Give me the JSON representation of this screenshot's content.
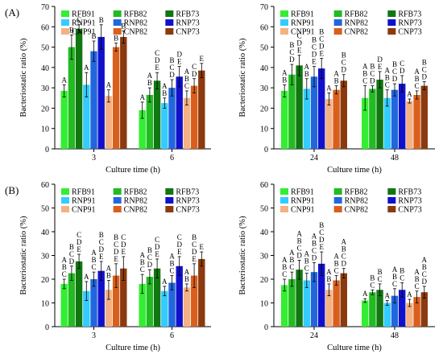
{
  "panel_labels": [
    "(A)",
    "(B)"
  ],
  "legend_labels": [
    "RFB91",
    "RFB82",
    "RFB73",
    "RNP91",
    "RNP82",
    "RNP73",
    "CNP91",
    "CNP82",
    "CNP73"
  ],
  "series_colors": [
    "#33ee33",
    "#22bb22",
    "#117711",
    "#33ccff",
    "#2266dd",
    "#1111cc",
    "#f4b183",
    "#d95f1c",
    "#8b3a0f"
  ],
  "chart_data": [
    {
      "type": "bar",
      "panel": "(A)",
      "position": "top-left",
      "categories": [
        "3",
        "6"
      ],
      "xlabel": "Culture time (h)",
      "ylabel": "Bacteriostatic ratio (%)",
      "ylim": [
        0,
        70
      ],
      "yticks": [
        "0",
        "10",
        "20",
        "30",
        "40",
        "50",
        "60",
        "70"
      ],
      "grid": false,
      "legend": "top",
      "series": [
        {
          "name": "RFB91",
          "values": [
            28.5,
            19
          ],
          "errors": [
            3,
            4
          ],
          "letters": [
            "A",
            "A"
          ]
        },
        {
          "name": "RFB82",
          "values": [
            50,
            26.5
          ],
          "errors": [
            6,
            3.5
          ],
          "letters": [
            "B",
            "A B"
          ]
        },
        {
          "name": "RFB73",
          "values": [
            59,
            33.5
          ],
          "errors": [
            2,
            4
          ],
          "letters": [
            "C",
            "C D E"
          ]
        },
        {
          "name": "RNP91",
          "values": [
            31.5,
            22.5
          ],
          "errors": [
            6,
            2.5
          ],
          "letters": [
            "A",
            "A B"
          ]
        },
        {
          "name": "RNP82",
          "values": [
            48,
            30
          ],
          "errors": [
            5,
            4
          ],
          "letters": [
            "B",
            "B C D"
          ]
        },
        {
          "name": "RNP73",
          "values": [
            55,
            35.5
          ],
          "errors": [
            6,
            5
          ],
          "letters": [
            "B",
            "D E"
          ]
        },
        {
          "name": "CNP91",
          "values": [
            26,
            25
          ],
          "errors": [
            3,
            3.5
          ],
          "letters": [
            "A",
            "A B C"
          ]
        },
        {
          "name": "CNP82",
          "values": [
            50,
            31
          ],
          "errors": [
            2,
            3.5
          ],
          "letters": [
            "B",
            "C D"
          ]
        },
        {
          "name": "CNP73",
          "values": [
            55,
            38.5
          ],
          "errors": [
            3,
            3.5
          ],
          "letters": [
            "B",
            "E"
          ]
        }
      ]
    },
    {
      "type": "bar",
      "panel": "(A)",
      "position": "top-right",
      "categories": [
        "24",
        "48"
      ],
      "xlabel": "Culture time (h)",
      "ylabel": "Bacteriostatic ratio (%)",
      "ylim": [
        0,
        70
      ],
      "yticks": [
        "0",
        "10",
        "20",
        "30",
        "40",
        "50",
        "60",
        "70"
      ],
      "grid": false,
      "legend": "top",
      "series": [
        {
          "name": "RFB91",
          "values": [
            28.5,
            25
          ],
          "errors": [
            3,
            6
          ],
          "letters": [
            "A B",
            "A B C"
          ]
        },
        {
          "name": "RFB82",
          "values": [
            36.5,
            29.5
          ],
          "errors": [
            5,
            1.5
          ],
          "letters": [
            "B C D",
            "B C D"
          ]
        },
        {
          "name": "RFB73",
          "values": [
            41,
            34
          ],
          "errors": [
            5,
            4
          ],
          "letters": [
            "C D E",
            "D E"
          ]
        },
        {
          "name": "RNP91",
          "values": [
            29.5,
            25
          ],
          "errors": [
            5,
            4
          ],
          "letters": [
            "A B",
            "A B C"
          ]
        },
        {
          "name": "RNP82",
          "values": [
            35.5,
            29
          ],
          "errors": [
            5,
            3
          ],
          "letters": [
            "B C D E",
            "B C D"
          ]
        },
        {
          "name": "RNP73",
          "values": [
            39.5,
            32
          ],
          "errors": [
            5,
            4
          ],
          "letters": [
            "B C D E",
            "C D"
          ]
        },
        {
          "name": "CNP91",
          "values": [
            24.5,
            23.5
          ],
          "errors": [
            3,
            1
          ],
          "letters": [
            "A",
            "A"
          ]
        },
        {
          "name": "CNP82",
          "values": [
            29,
            26.5
          ],
          "errors": [
            2,
            2
          ],
          "letters": [
            "A B",
            "A B C"
          ]
        },
        {
          "name": "CNP73",
          "values": [
            33.5,
            31
          ],
          "errors": [
            3,
            2
          ],
          "letters": [
            "B C D",
            "B C D"
          ]
        }
      ]
    },
    {
      "type": "bar",
      "panel": "(B)",
      "position": "bottom-left",
      "categories": [
        "3",
        "6"
      ],
      "xlabel": "Culture time (h)",
      "ylabel": "Bacteriostatic ratio (%)",
      "ylim": [
        0,
        60
      ],
      "yticks": [
        "0",
        "10",
        "20",
        "30",
        "40",
        "50",
        "60"
      ],
      "grid": false,
      "legend": "top",
      "series": [
        {
          "name": "RFB91",
          "values": [
            18,
            18
          ],
          "errors": [
            2,
            4
          ],
          "letters": [
            "A B C",
            "A B C"
          ]
        },
        {
          "name": "RFB82",
          "values": [
            22.5,
            21
          ],
          "errors": [
            3,
            3
          ],
          "letters": [
            "B C D",
            "B C D"
          ]
        },
        {
          "name": "RFB73",
          "values": [
            27.5,
            24.5
          ],
          "errors": [
            3,
            4
          ],
          "letters": [
            "C D E",
            "C D E"
          ]
        },
        {
          "name": "RNP91",
          "values": [
            15,
            15
          ],
          "errors": [
            4,
            2
          ],
          "letters": [
            "A",
            "A"
          ]
        },
        {
          "name": "RNP82",
          "values": [
            20,
            18.5
          ],
          "errors": [
            3,
            3
          ],
          "letters": [
            "A B C",
            "A B C"
          ]
        },
        {
          "name": "RNP73",
          "values": [
            23.5,
            25.5
          ],
          "errors": [
            4,
            4
          ],
          "letters": [
            "B C D E",
            "C D E"
          ]
        },
        {
          "name": "CNP91",
          "values": [
            15.5,
            16.5
          ],
          "errors": [
            4,
            1.5
          ],
          "letters": [
            "A B",
            "A B"
          ]
        },
        {
          "name": "CNP82",
          "values": [
            21.5,
            21.5
          ],
          "errors": [
            5,
            5
          ],
          "letters": [
            "B C D E",
            "B C D E"
          ]
        },
        {
          "name": "CNP73",
          "values": [
            24.5,
            28.5
          ],
          "errors": [
            5,
            3
          ],
          "letters": [
            "C D E",
            "E"
          ]
        }
      ]
    },
    {
      "type": "bar",
      "panel": "(B)",
      "position": "bottom-right",
      "categories": [
        "24",
        "48"
      ],
      "xlabel": "Culture time (h)",
      "ylabel": "Bacteriostatic ratio (%)",
      "ylim": [
        0,
        60
      ],
      "yticks": [
        "0",
        "10",
        "20",
        "30",
        "40",
        "50",
        "60"
      ],
      "grid": false,
      "legend": "top",
      "series": [
        {
          "name": "RFB91",
          "values": [
            17.5,
            11
          ],
          "errors": [
            2.5,
            0.8
          ],
          "letters": [
            "A B C",
            "A"
          ]
        },
        {
          "name": "RFB82",
          "values": [
            20,
            14.5
          ],
          "errors": [
            3,
            1
          ],
          "letters": [
            "A B C",
            "B C"
          ]
        },
        {
          "name": "RFB73",
          "values": [
            24,
            15.5
          ],
          "errors": [
            4,
            2.5
          ],
          "letters": [
            "A B C D",
            "B C"
          ]
        },
        {
          "name": "RNP91",
          "values": [
            19.5,
            10
          ],
          "errors": [
            3,
            1
          ],
          "letters": [
            "A B C",
            "A"
          ]
        },
        {
          "name": "RNP82",
          "values": [
            23,
            13
          ],
          "errors": [
            4,
            3
          ],
          "letters": [
            "A B C D",
            "A B C"
          ]
        },
        {
          "name": "RNP73",
          "values": [
            26.5,
            15.5
          ],
          "errors": [
            5,
            3
          ],
          "letters": [
            "B C D E",
            "B C"
          ]
        },
        {
          "name": "CNP91",
          "values": [
            15.5,
            10
          ],
          "errors": [
            2.5,
            1.5
          ],
          "letters": [
            "A B",
            "A"
          ]
        },
        {
          "name": "CNP82",
          "values": [
            19.5,
            12.5
          ],
          "errors": [
            2,
            2.5
          ],
          "letters": [
            "A B C",
            "A B C"
          ]
        },
        {
          "name": "CNP73",
          "values": [
            22.5,
            14.5
          ],
          "errors": [
            2,
            2.5
          ],
          "letters": [
            "A B C D",
            "A B C D"
          ]
        }
      ]
    }
  ]
}
